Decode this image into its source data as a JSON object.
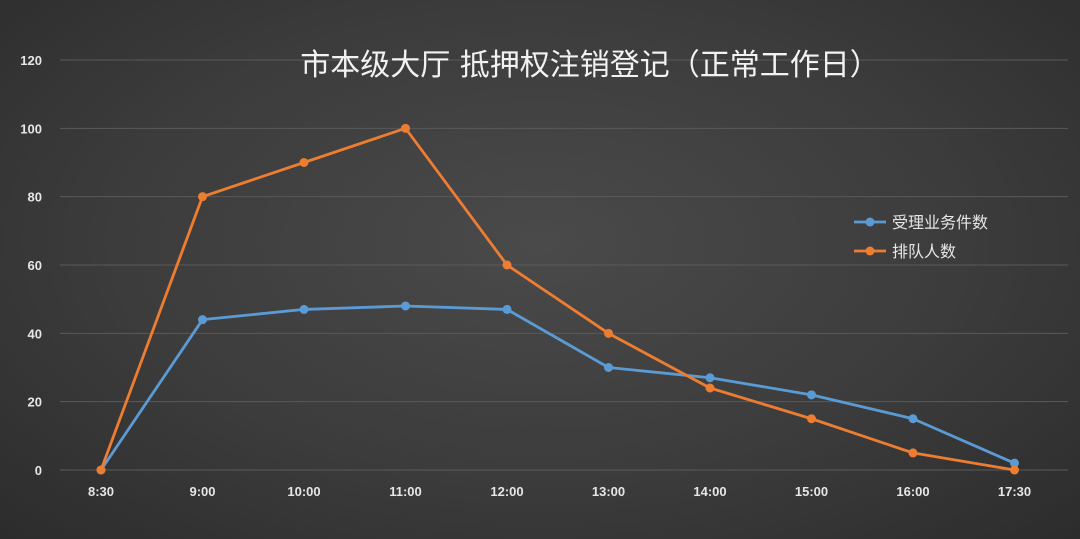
{
  "chart_data": {
    "type": "line",
    "title": "市本级大厅  抵押权注销登记（正常工作日）",
    "xlabel": "",
    "ylabel": "",
    "categories": [
      "8:30",
      "9:00",
      "10:00",
      "11:00",
      "12:00",
      "13:00",
      "14:00",
      "15:00",
      "16:00",
      "17:30"
    ],
    "ylim": [
      0,
      120
    ],
    "yticks": [
      0,
      20,
      40,
      60,
      80,
      100,
      120
    ],
    "grid": true,
    "legend_position": "right",
    "series": [
      {
        "name": "受理业务件数",
        "color": "#5b9bd5",
        "values": [
          0,
          44,
          47,
          48,
          47,
          30,
          27,
          22,
          15,
          2
        ]
      },
      {
        "name": "排队人数",
        "color": "#ed7d31",
        "values": [
          0,
          80,
          90,
          100,
          60,
          40,
          24,
          15,
          5,
          0
        ]
      }
    ]
  }
}
